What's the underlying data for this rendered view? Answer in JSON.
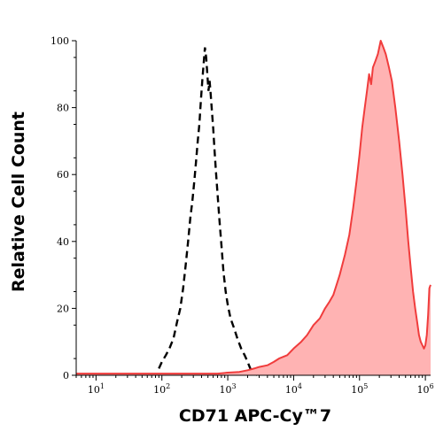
{
  "chart_data": {
    "type": "area",
    "xlabel": "CD71 APC-Cy™7",
    "ylabel": "Relative Cell Count",
    "xscale": "log",
    "xlim": [
      5,
      1200000
    ],
    "ylim": [
      0,
      100
    ],
    "x_ticks": [
      {
        "value": 10,
        "base": "10",
        "exp": "1"
      },
      {
        "value": 100,
        "base": "10",
        "exp": "2"
      },
      {
        "value": 1000,
        "base": "10",
        "exp": "3"
      },
      {
        "value": 10000,
        "base": "10",
        "exp": "4"
      },
      {
        "value": 100000,
        "base": "10",
        "exp": "5"
      },
      {
        "value": 1000000,
        "base": "10",
        "exp": "6"
      }
    ],
    "y_ticks": [
      {
        "value": 0,
        "label": "0"
      },
      {
        "value": 20,
        "label": "20"
      },
      {
        "value": 40,
        "label": "40"
      },
      {
        "value": 60,
        "label": "60"
      },
      {
        "value": 80,
        "label": "80"
      },
      {
        "value": 100,
        "label": "100"
      }
    ],
    "grid": false,
    "colors": {
      "control": "#000000",
      "sample_line": "#f03c3c",
      "sample_fill": "#ffb3b3"
    },
    "series": [
      {
        "style": "dashed",
        "x": [
          90,
          100,
          115,
          130,
          150,
          170,
          190,
          210,
          230,
          250,
          270,
          290,
          310,
          330,
          350,
          370,
          390,
          410,
          430,
          450,
          470,
          490,
          510,
          530,
          550,
          570,
          600,
          630,
          660,
          700,
          750,
          800,
          860,
          930,
          1000,
          1100,
          1250,
          1400,
          1600,
          1800,
          2000,
          2200,
          2500,
          2800
        ],
        "values": [
          2,
          4,
          6,
          8,
          11,
          16,
          20,
          26,
          33,
          40,
          47,
          52,
          58,
          64,
          70,
          75,
          82,
          88,
          93,
          98,
          95,
          90,
          85,
          88,
          84,
          80,
          74,
          67,
          61,
          54,
          46,
          39,
          31,
          25,
          21,
          17,
          14,
          11,
          8,
          6,
          4,
          2,
          1,
          0
        ]
      },
      {
        "style": "filled",
        "x": [
          5,
          100,
          200,
          400,
          700,
          1000,
          1500,
          2000,
          2500,
          3000,
          4000,
          5000,
          6000,
          8000,
          10000,
          13000,
          16000,
          20000,
          25000,
          30000,
          35000,
          40000,
          50000,
          60000,
          70000,
          80000,
          90000,
          100000,
          110000,
          120000,
          130000,
          140000,
          150000,
          160000,
          175000,
          190000,
          210000,
          230000,
          250000,
          280000,
          310000,
          350000,
          400000,
          450000,
          500000,
          550000,
          600000,
          650000,
          700000,
          750000,
          800000,
          850000,
          900000,
          950000,
          1000000,
          1050000,
          1100000,
          1150000,
          1200000
        ],
        "values": [
          0.5,
          0.5,
          0.5,
          0.5,
          0.5,
          0.8,
          1,
          1.5,
          2,
          2.5,
          3,
          4,
          5,
          6,
          8,
          10,
          12,
          15,
          17,
          20,
          22,
          24,
          30,
          36,
          42,
          50,
          58,
          66,
          74,
          80,
          85,
          90,
          87,
          92,
          94,
          96,
          100,
          98,
          96,
          92,
          88,
          80,
          70,
          60,
          50,
          40,
          32,
          25,
          20,
          16,
          12,
          10,
          9,
          8,
          9,
          12,
          18,
          26,
          27
        ]
      }
    ]
  }
}
